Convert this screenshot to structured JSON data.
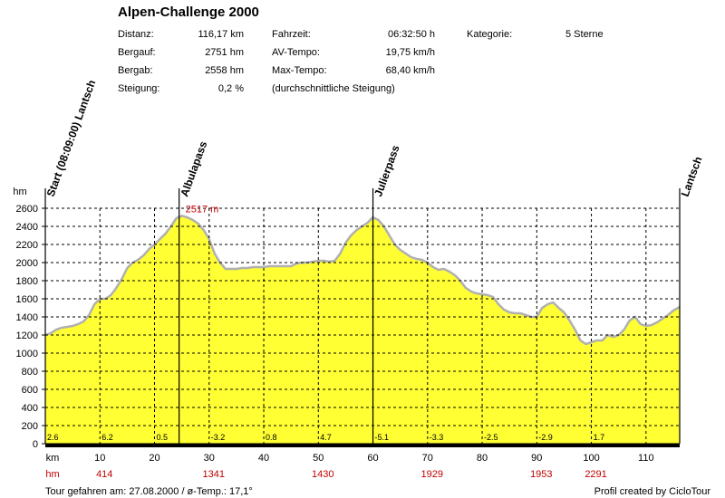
{
  "stats": {
    "title": "Alpen-Challenge 2000",
    "distanz_label": "Distanz:",
    "distanz_value": "116,17 km",
    "bergauf_label": "Bergauf:",
    "bergauf_value": "2751 hm",
    "bergab_label": "Bergab:",
    "bergab_value": "2558 hm",
    "steigung_label": "Steigung:",
    "steigung_value": "0,2 %",
    "fahrzeit_label": "Fahrzeit:",
    "fahrzeit_value": "06:32:50 h",
    "av_label": "AV-Tempo:",
    "av_value": "19,75 km/h",
    "max_label": "Max-Tempo:",
    "max_value": "68,40 km/h",
    "steigung_note": "(durchschnittliche Steigung)",
    "kategorie_label": "Kategorie:",
    "kategorie_value": "5 Sterne"
  },
  "footer": {
    "left": "Tour gefahren am: 27.08.2000  /  ø-Temp.: 17,1°",
    "right": "Profil created by CicloTour"
  },
  "chart_data": {
    "type": "area",
    "ylabel": "hm",
    "xlabel": "km",
    "ylim": [
      0,
      2600
    ],
    "xlim": [
      0,
      116.17
    ],
    "y_ticks": [
      0,
      200,
      400,
      600,
      800,
      1000,
      1200,
      1400,
      1600,
      1800,
      2000,
      2200,
      2400,
      2600
    ],
    "x_ticks": [
      10,
      20,
      30,
      40,
      50,
      60,
      70,
      80,
      90,
      100,
      110
    ],
    "grid": true,
    "fill_color": "#ffff33",
    "line_color": "#b0b0b0",
    "waypoints": [
      {
        "km": 0,
        "label": "Start (08:09:00) Lantsch"
      },
      {
        "km": 24.5,
        "label": "Albulapass"
      },
      {
        "km": 60,
        "label": "Julierpass"
      },
      {
        "km": 116.17,
        "label": "Lantsch"
      }
    ],
    "peak": {
      "km": 25,
      "value": 2517,
      "label": "2517 m"
    },
    "segment_gradients": [
      {
        "km": 0,
        "label": "2.6"
      },
      {
        "km": 10,
        "label": "6.2"
      },
      {
        "km": 20,
        "label": "0.5"
      },
      {
        "km": 30,
        "label": "-3.2"
      },
      {
        "km": 40,
        "label": "0.8"
      },
      {
        "km": 50,
        "label": "4.7"
      },
      {
        "km": 60,
        "label": "-5.1"
      },
      {
        "km": 70,
        "label": "-3.3"
      },
      {
        "km": 80,
        "label": "-2.5"
      },
      {
        "km": 90,
        "label": "-2.9"
      },
      {
        "km": 100,
        "label": "1.7"
      }
    ],
    "segment_ascents": [
      {
        "km": 10,
        "label": "414"
      },
      {
        "km": 30,
        "label": "1341"
      },
      {
        "km": 50,
        "label": "1430"
      },
      {
        "km": 70,
        "label": "1929"
      },
      {
        "km": 90,
        "label": "1953"
      },
      {
        "km": 100,
        "label": "2291"
      }
    ],
    "segment_ascents_label": "hm",
    "x": [
      0,
      1,
      2,
      3,
      4,
      5,
      6,
      7,
      8,
      9,
      10,
      11,
      12,
      13,
      14,
      15,
      16,
      17,
      18,
      19,
      20,
      21,
      22,
      23,
      24,
      25,
      26,
      27,
      28,
      29,
      30,
      31,
      32,
      33,
      34,
      35,
      36,
      37,
      38,
      39,
      40,
      41,
      42,
      43,
      44,
      45,
      46,
      47,
      48,
      49,
      50,
      51,
      52,
      53,
      54,
      55,
      56,
      57,
      58,
      59,
      60,
      61,
      62,
      63,
      64,
      65,
      66,
      67,
      68,
      69,
      70,
      71,
      72,
      73,
      74,
      75,
      76,
      77,
      78,
      79,
      80,
      81,
      82,
      83,
      84,
      85,
      86,
      87,
      88,
      89,
      90,
      91,
      92,
      93,
      94,
      95,
      96,
      97,
      98,
      99,
      100,
      101,
      102,
      103,
      104,
      105,
      106,
      107,
      108,
      109,
      110,
      111,
      112,
      113,
      114,
      115,
      116.17
    ],
    "y": [
      1200,
      1220,
      1260,
      1280,
      1290,
      1300,
      1320,
      1350,
      1420,
      1540,
      1600,
      1600,
      1640,
      1720,
      1820,
      1940,
      2000,
      2030,
      2080,
      2150,
      2200,
      2260,
      2320,
      2400,
      2490,
      2517,
      2500,
      2470,
      2430,
      2360,
      2260,
      2100,
      2000,
      1930,
      1930,
      1930,
      1940,
      1940,
      1950,
      1950,
      1950,
      1960,
      1960,
      1960,
      1960,
      1960,
      1990,
      2000,
      2000,
      2010,
      2020,
      2020,
      2010,
      2020,
      2100,
      2220,
      2300,
      2360,
      2400,
      2440,
      2500,
      2470,
      2400,
      2300,
      2200,
      2140,
      2100,
      2060,
      2040,
      2030,
      2000,
      1950,
      1920,
      1930,
      1900,
      1860,
      1800,
      1720,
      1680,
      1660,
      1650,
      1640,
      1620,
      1540,
      1480,
      1450,
      1440,
      1440,
      1420,
      1400,
      1400,
      1500,
      1540,
      1560,
      1500,
      1450,
      1360,
      1260,
      1140,
      1100,
      1120,
      1140,
      1140,
      1200,
      1180,
      1200,
      1260,
      1360,
      1400,
      1320,
      1300,
      1310,
      1340,
      1380,
      1420,
      1470,
      1510
    ]
  }
}
